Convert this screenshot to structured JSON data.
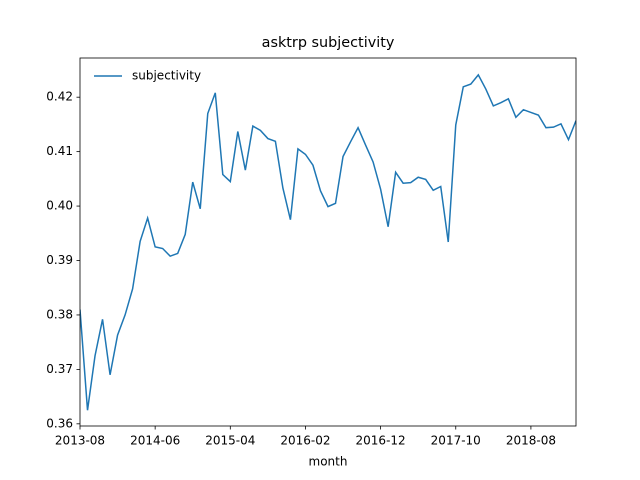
{
  "chart_data": {
    "type": "line",
    "title": "asktrp subjectivity",
    "x_label": "month",
    "x": [
      "2013-08",
      "2013-09",
      "2013-10",
      "2013-11",
      "2013-12",
      "2014-01",
      "2014-02",
      "2014-03",
      "2014-04",
      "2014-05",
      "2014-06",
      "2014-07",
      "2014-08",
      "2014-09",
      "2014-10",
      "2014-11",
      "2014-12",
      "2015-01",
      "2015-02",
      "2015-03",
      "2015-04",
      "2015-05",
      "2015-06",
      "2015-07",
      "2015-08",
      "2015-09",
      "2015-10",
      "2015-11",
      "2015-12",
      "2016-01",
      "2016-02",
      "2016-03",
      "2016-04",
      "2016-05",
      "2016-06",
      "2016-07",
      "2016-08",
      "2016-09",
      "2016-10",
      "2016-11",
      "2016-12",
      "2017-01",
      "2017-02",
      "2017-03",
      "2017-04",
      "2017-05",
      "2017-06",
      "2017-07",
      "2017-08",
      "2017-09",
      "2017-10",
      "2017-11",
      "2017-12",
      "2018-01",
      "2018-02",
      "2018-03",
      "2018-04",
      "2018-05",
      "2018-06",
      "2018-07",
      "2018-08",
      "2018-09",
      "2018-10",
      "2018-11",
      "2018-12",
      "2019-01",
      "2019-02"
    ],
    "series": [
      {
        "name": "subjectivity",
        "color": "#1f77b4",
        "values": [
          0.381,
          0.3625,
          0.3725,
          0.3792,
          0.369,
          0.3763,
          0.38,
          0.3848,
          0.3935,
          0.3978,
          0.3925,
          0.3922,
          0.3908,
          0.3913,
          0.3948,
          0.4044,
          0.3995,
          0.417,
          0.4208,
          0.4058,
          0.4045,
          0.4137,
          0.4066,
          0.4147,
          0.4139,
          0.4124,
          0.4119,
          0.4033,
          0.3975,
          0.4105,
          0.4095,
          0.4075,
          0.4028,
          0.3999,
          0.4005,
          0.4091,
          0.4118,
          0.4144,
          0.4112,
          0.4081,
          0.4031,
          0.3962,
          0.4062,
          0.4042,
          0.4043,
          0.4053,
          0.4049,
          0.4029,
          0.4036,
          0.3934,
          0.4149,
          0.4219,
          0.4224,
          0.4241,
          0.4215,
          0.4184,
          0.419,
          0.4197,
          0.4163,
          0.4177,
          0.4172,
          0.4167,
          0.4144,
          0.4145,
          0.4151,
          0.4122,
          0.4157
        ]
      }
    ],
    "xlim": [
      "2013-08",
      "2019-02"
    ],
    "xticks": [
      "2013-08",
      "2014-06",
      "2015-04",
      "2016-02",
      "2016-12",
      "2017-10",
      "2018-08"
    ],
    "ylim": [
      0.3596,
      0.4272
    ],
    "yticks": [
      0.36,
      0.37,
      0.38,
      0.39,
      {
        "value": 0.4,
        "label": "0.40"
      },
      0.41,
      0.42
    ],
    "legend": "upper left"
  }
}
